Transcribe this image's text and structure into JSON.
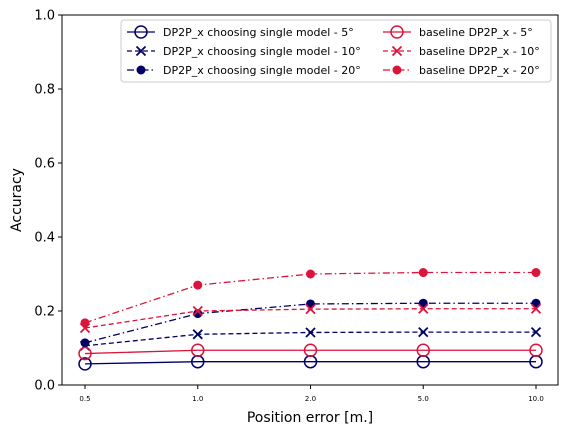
{
  "chart_data": {
    "type": "line",
    "xlabel": "Position error [m.]",
    "ylabel": "Accuracy",
    "categories": [
      "0.5",
      "1.0",
      "2.0",
      "5.0",
      "10.0"
    ],
    "ylim": [
      0.0,
      1.0
    ],
    "yticks": [
      "0.0",
      "0.2",
      "0.4",
      "0.6",
      "0.8",
      "1.0"
    ],
    "grid": false,
    "legend_position": "top-right",
    "legend_columns": 2,
    "series": [
      {
        "name": "DP2P_x choosing single model - 5°",
        "values": [
          0.057,
          0.063,
          0.063,
          0.063,
          0.063
        ],
        "color": "#000066",
        "linestyle": "solid",
        "marker": "open-circle"
      },
      {
        "name": "DP2P_x choosing single model - 10°",
        "values": [
          0.106,
          0.137,
          0.142,
          0.143,
          0.143
        ],
        "color": "#000066",
        "linestyle": "dashed",
        "marker": "x"
      },
      {
        "name": "DP2P_x choosing single model - 20°",
        "values": [
          0.114,
          0.193,
          0.219,
          0.221,
          0.221
        ],
        "color": "#000066",
        "linestyle": "dashdot",
        "marker": "dot"
      },
      {
        "name": "baseline DP2P_x - 5°",
        "values": [
          0.085,
          0.094,
          0.094,
          0.094,
          0.094
        ],
        "color": "#dc143c",
        "linestyle": "solid",
        "marker": "open-circle"
      },
      {
        "name": "baseline DP2P_x - 10°",
        "values": [
          0.154,
          0.2,
          0.205,
          0.206,
          0.206
        ],
        "color": "#dc143c",
        "linestyle": "dashed",
        "marker": "x"
      },
      {
        "name": "baseline DP2P_x - 20°",
        "values": [
          0.168,
          0.27,
          0.3,
          0.304,
          0.304
        ],
        "color": "#dc143c",
        "linestyle": "dashdot",
        "marker": "dot"
      }
    ]
  }
}
